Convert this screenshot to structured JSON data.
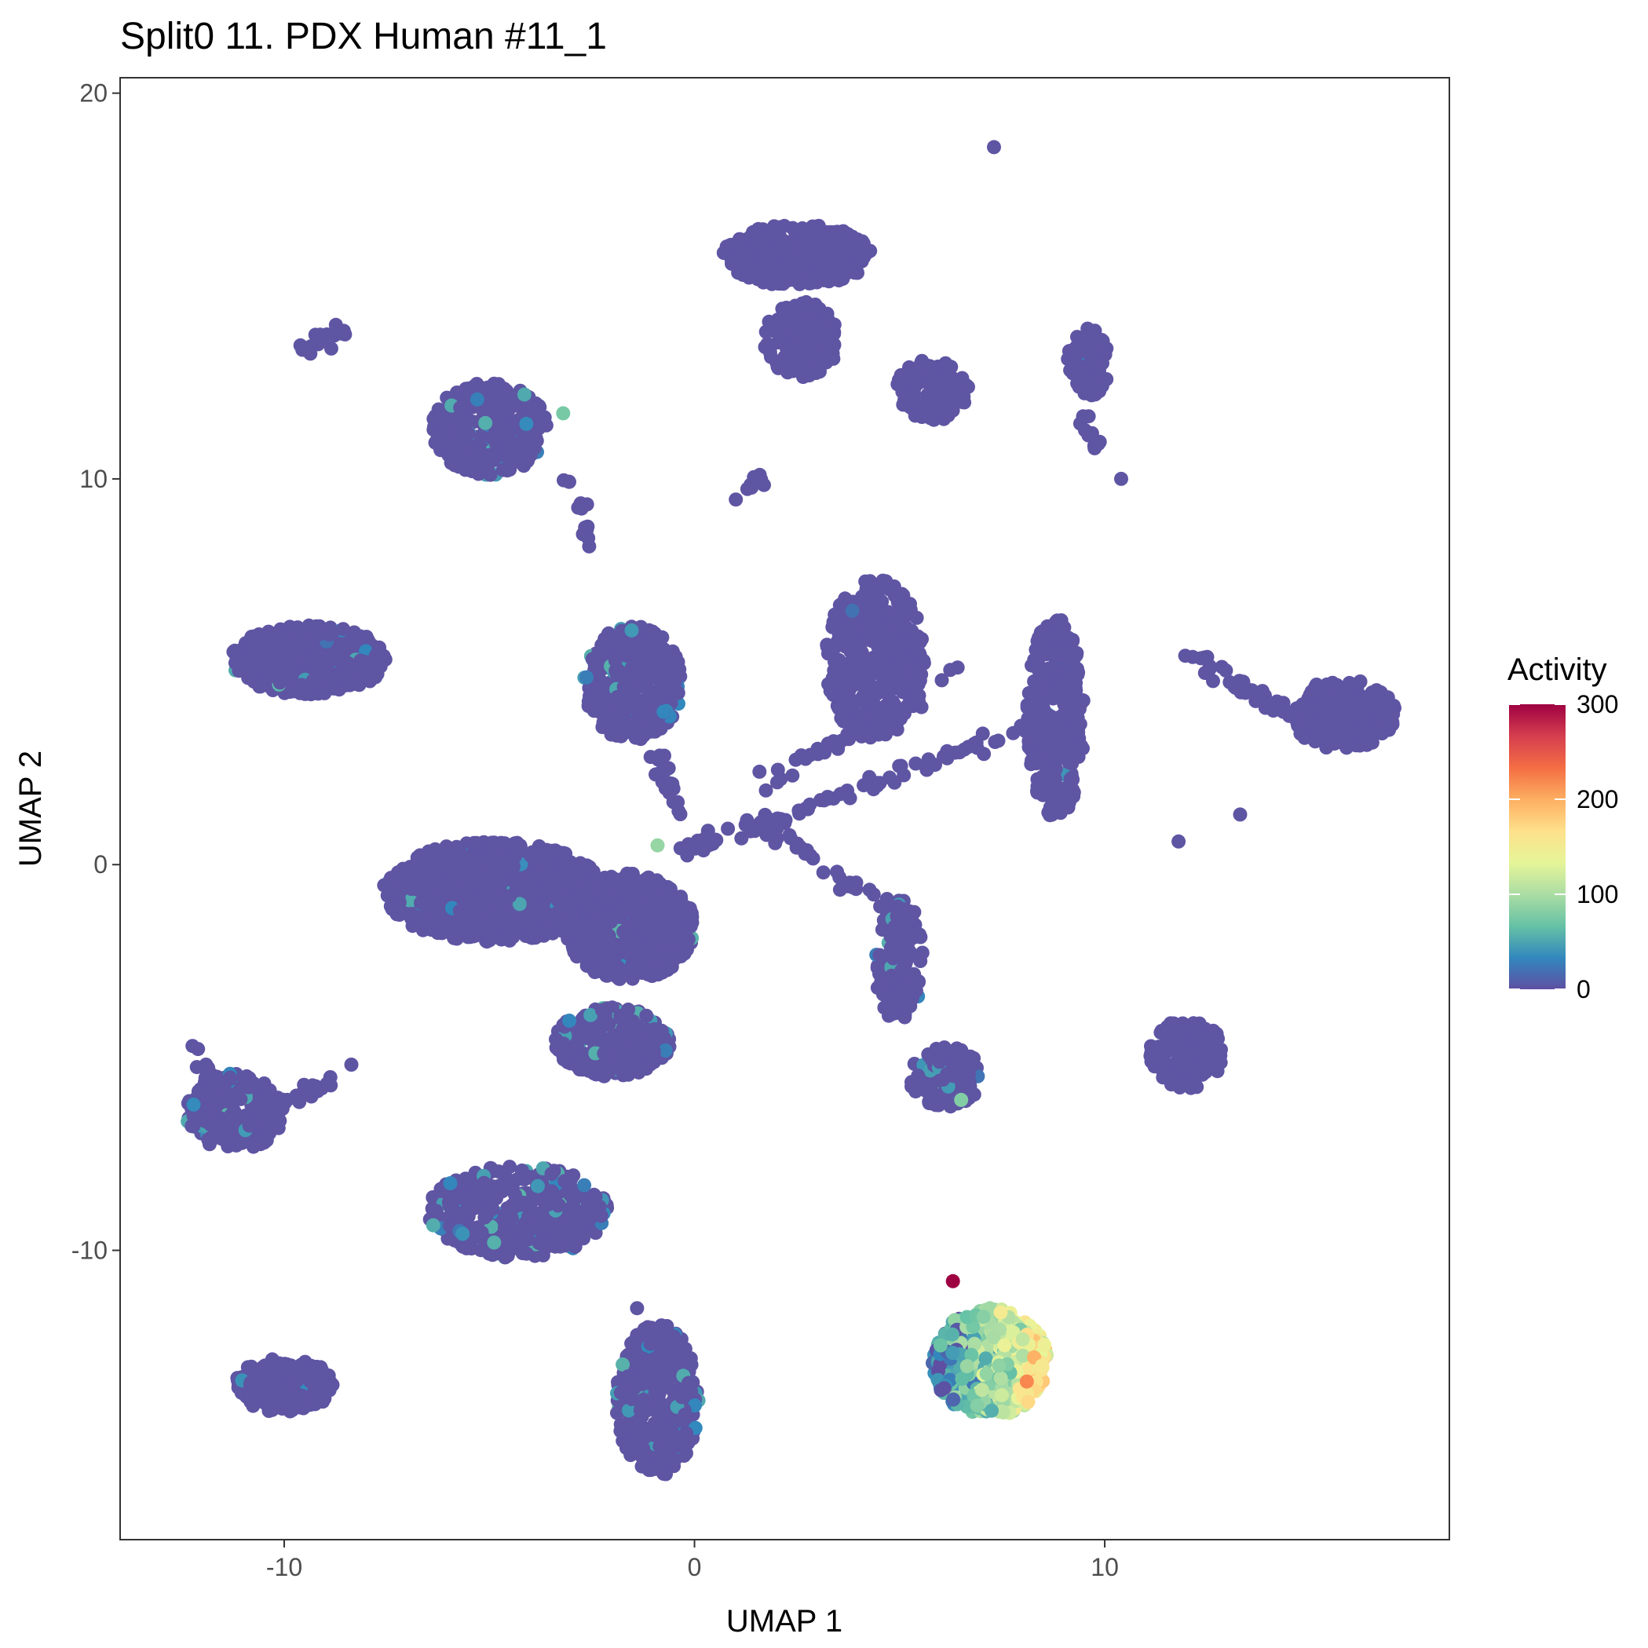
{
  "chart_data": {
    "type": "scatter",
    "title": "Split0 11. PDX Human #11_1",
    "xlabel": "UMAP 1",
    "ylabel": "UMAP 2",
    "xlim": [
      -14.0,
      18.4
    ],
    "ylim": [
      -17.5,
      20.4
    ],
    "xticks": [
      -10,
      0,
      10
    ],
    "yticks": [
      -10,
      0,
      10,
      20
    ],
    "grid": false,
    "legend": {
      "title": "Activity",
      "placement": "right",
      "min": 0,
      "max": 300,
      "ticks": [
        0,
        100,
        200,
        300
      ],
      "colors": [
        "#5e4fa2",
        "#3288bd",
        "#66c2a5",
        "#abdda4",
        "#e6f598",
        "#fee08b",
        "#fdae61",
        "#f46d43",
        "#d53e4f",
        "#9e0142"
      ]
    },
    "point_color_base": "#5e55a3",
    "clusters": [
      {
        "cx": -4.9,
        "cy": -0.7,
        "rx": 2.7,
        "ry": 1.3,
        "n": 900,
        "hot": 0.02
      },
      {
        "cx": -1.6,
        "cy": -1.6,
        "rx": 1.6,
        "ry": 1.4,
        "n": 600,
        "hot": 0.03
      },
      {
        "cx": -2.0,
        "cy": -4.6,
        "rx": 1.4,
        "ry": 0.9,
        "n": 350,
        "hot": 0.05
      },
      {
        "cx": -9.4,
        "cy": 5.3,
        "rx": 1.9,
        "ry": 0.9,
        "n": 450,
        "hot": 0.03
      },
      {
        "cx": -1.5,
        "cy": 4.7,
        "rx": 1.2,
        "ry": 1.5,
        "n": 380,
        "hot": 0.06
      },
      {
        "cx": -5.0,
        "cy": 11.3,
        "rx": 1.4,
        "ry": 1.2,
        "n": 340,
        "hot": 0.04
      },
      {
        "cx": 2.5,
        "cy": 15.8,
        "rx": 1.8,
        "ry": 0.8,
        "n": 380,
        "hot": 0.01
      },
      {
        "cx": 2.6,
        "cy": 13.6,
        "rx": 0.9,
        "ry": 1.0,
        "n": 180,
        "hot": 0.02
      },
      {
        "cx": 5.8,
        "cy": 12.3,
        "rx": 0.9,
        "ry": 0.8,
        "n": 150,
        "hot": 0.0
      },
      {
        "cx": 9.6,
        "cy": 13.0,
        "rx": 0.5,
        "ry": 0.9,
        "n": 70,
        "hot": 0.03
      },
      {
        "cx": 4.4,
        "cy": 5.3,
        "rx": 1.2,
        "ry": 2.1,
        "n": 360,
        "hot": 0.01
      },
      {
        "cx": 8.8,
        "cy": 3.8,
        "rx": 0.7,
        "ry": 2.6,
        "n": 330,
        "hot": 0.01
      },
      {
        "cx": 15.8,
        "cy": 3.9,
        "rx": 1.3,
        "ry": 0.9,
        "n": 220,
        "hot": 0.0
      },
      {
        "cx": -11.2,
        "cy": -6.4,
        "rx": 1.2,
        "ry": 1.0,
        "n": 200,
        "hot": 0.08
      },
      {
        "cx": -4.3,
        "cy": -9.0,
        "rx": 2.2,
        "ry": 1.2,
        "n": 430,
        "hot": 0.07
      },
      {
        "cx": -10.0,
        "cy": -13.5,
        "rx": 1.2,
        "ry": 0.7,
        "n": 200,
        "hot": 0.04
      },
      {
        "cx": -0.9,
        "cy": -13.9,
        "rx": 1.0,
        "ry": 2.0,
        "n": 340,
        "hot": 0.05
      },
      {
        "cx": 6.1,
        "cy": -5.5,
        "rx": 0.9,
        "ry": 0.8,
        "n": 130,
        "hot": 0.12
      },
      {
        "cx": 5.0,
        "cy": -2.5,
        "rx": 0.6,
        "ry": 1.6,
        "n": 120,
        "hot": 0.05
      },
      {
        "cx": 12.0,
        "cy": -4.9,
        "rx": 0.9,
        "ry": 0.9,
        "n": 160,
        "hot": 0.0
      },
      {
        "cx": 7.2,
        "cy": -12.9,
        "rx": 1.4,
        "ry": 1.4,
        "n": 480,
        "hot": 0.7
      }
    ],
    "strands": [
      {
        "from": [
          -0.4,
          0.3
        ],
        "to": [
          8.2,
          3.6
        ],
        "n": 80
      },
      {
        "from": [
          1.5,
          2.0
        ],
        "to": [
          6.5,
          5.0
        ],
        "n": 40
      },
      {
        "from": [
          1.6,
          1.1
        ],
        "to": [
          5.3,
          -1.5
        ],
        "n": 40
      },
      {
        "from": [
          12.0,
          5.5
        ],
        "to": [
          15.5,
          3.2
        ],
        "n": 60
      },
      {
        "from": [
          -12.0,
          -7.0
        ],
        "to": [
          -8.2,
          -5.3
        ],
        "n": 40
      },
      {
        "from": [
          -3.0,
          10.2
        ],
        "to": [
          -2.6,
          8.4
        ],
        "n": 15
      },
      {
        "from": [
          -9.6,
          13.3
        ],
        "to": [
          -8.6,
          13.9
        ],
        "n": 15
      },
      {
        "from": [
          1.2,
          9.6
        ],
        "to": [
          1.7,
          10.1
        ],
        "n": 10
      },
      {
        "from": [
          9.5,
          11.7
        ],
        "to": [
          9.8,
          10.9
        ],
        "n": 10
      },
      {
        "from": [
          -12.1,
          -4.9
        ],
        "to": [
          -11.8,
          -6.0
        ],
        "n": 10
      },
      {
        "from": [
          -0.9,
          3.0
        ],
        "to": [
          -0.5,
          1.5
        ],
        "n": 20
      }
    ],
    "isolated_points": [
      {
        "x": 7.3,
        "y": 18.6,
        "v": 0
      },
      {
        "x": 10.4,
        "y": 10.0,
        "v": 0
      },
      {
        "x": 11.8,
        "y": 0.6,
        "v": 0
      },
      {
        "x": 13.3,
        "y": 1.3,
        "v": 0
      },
      {
        "x": 6.3,
        "y": -10.8,
        "v": 300
      },
      {
        "x": 8.1,
        "y": -13.4,
        "v": 220
      },
      {
        "x": -1.4,
        "y": -11.5,
        "v": 0
      },
      {
        "x": -0.9,
        "y": 0.5,
        "v": 90
      },
      {
        "x": -3.2,
        "y": 11.7,
        "v": 75
      },
      {
        "x": 6.5,
        "y": -6.1,
        "v": 80
      }
    ]
  }
}
